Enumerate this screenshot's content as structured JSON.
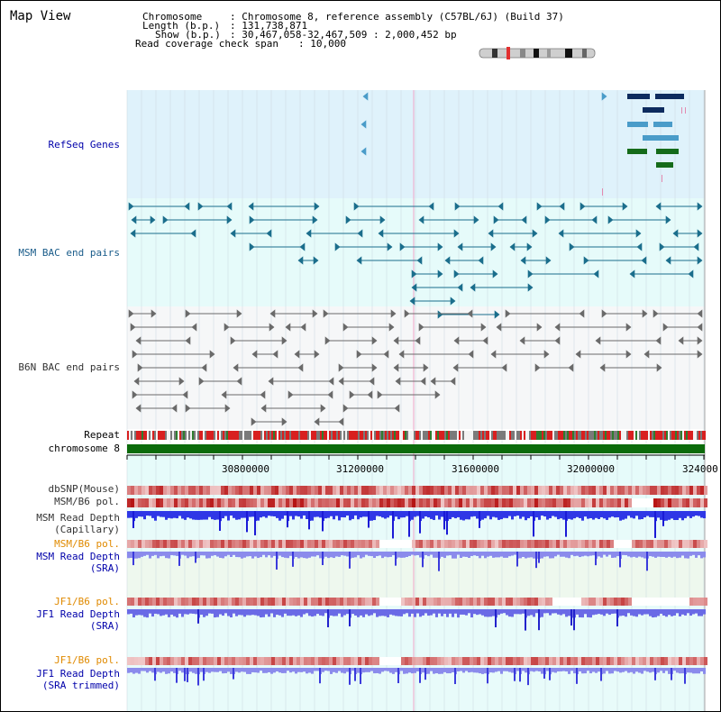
{
  "page": {
    "title": "Map View"
  },
  "header": {
    "chromosome_key": "Chromosome",
    "chromosome_val": ": Chromosome 8, reference assembly (C57BL/6J) (Build 37)",
    "length_key": "Length (b.p.)",
    "length_val": ": 131,738,871",
    "show_key": "Show (b.p.)",
    "show_val": ": 30,467,058-32,467,509 : 2,000,452 bp",
    "span_key": "Read coverage check span",
    "span_val": ": 10,000"
  },
  "tracks": {
    "refseq": "RefSeq Genes",
    "msm_bac": "MSM BAC end pairs",
    "b6n_bac": "B6N BAC end pairs",
    "repeat": "Repeat",
    "chromosome": "chromosome 8",
    "dbsnp": "dbSNP(Mouse)",
    "msm_b6_pol_1": "MSM/B6 pol.",
    "msm_depth_cap_1": "MSM Read Depth",
    "msm_depth_cap_2": "(Capillary)",
    "msm_b6_pol_2": "MSM/B6 pol.",
    "msm_depth_sra_1": "MSM Read Depth",
    "msm_depth_sra_2": "(SRA)",
    "jf1_b6_pol_1": "JF1/B6 pol.",
    "jf1_depth_sra_1": "JF1 Read Depth",
    "jf1_depth_sra_2": "(SRA)",
    "jf1_b6_pol_2": "JF1/B6 pol.",
    "jf1_depth_trim_1": "JF1 Read Depth",
    "jf1_depth_trim_2": "(SRA trimmed)"
  },
  "ruler": {
    "ticks": [
      "30800000",
      "31200000",
      "31600000",
      "32000000",
      "324000"
    ]
  },
  "colors": {
    "refseq_bg": "#dff2fb",
    "msm_bac_bg": "#e6fbfa",
    "b6n_bac_bg": "#f4f6f8",
    "gene_navy": "#0d2b5e",
    "gene_blue": "#4a9cc9",
    "gene_green": "#156b1a",
    "bac_teal": "#1b6e8c",
    "bac_gray": "#6a6a6a",
    "chromosome_green": "#0b6b0b",
    "depth_blue": "#2233dd",
    "depth_violet": "#6a6ae6"
  }
}
